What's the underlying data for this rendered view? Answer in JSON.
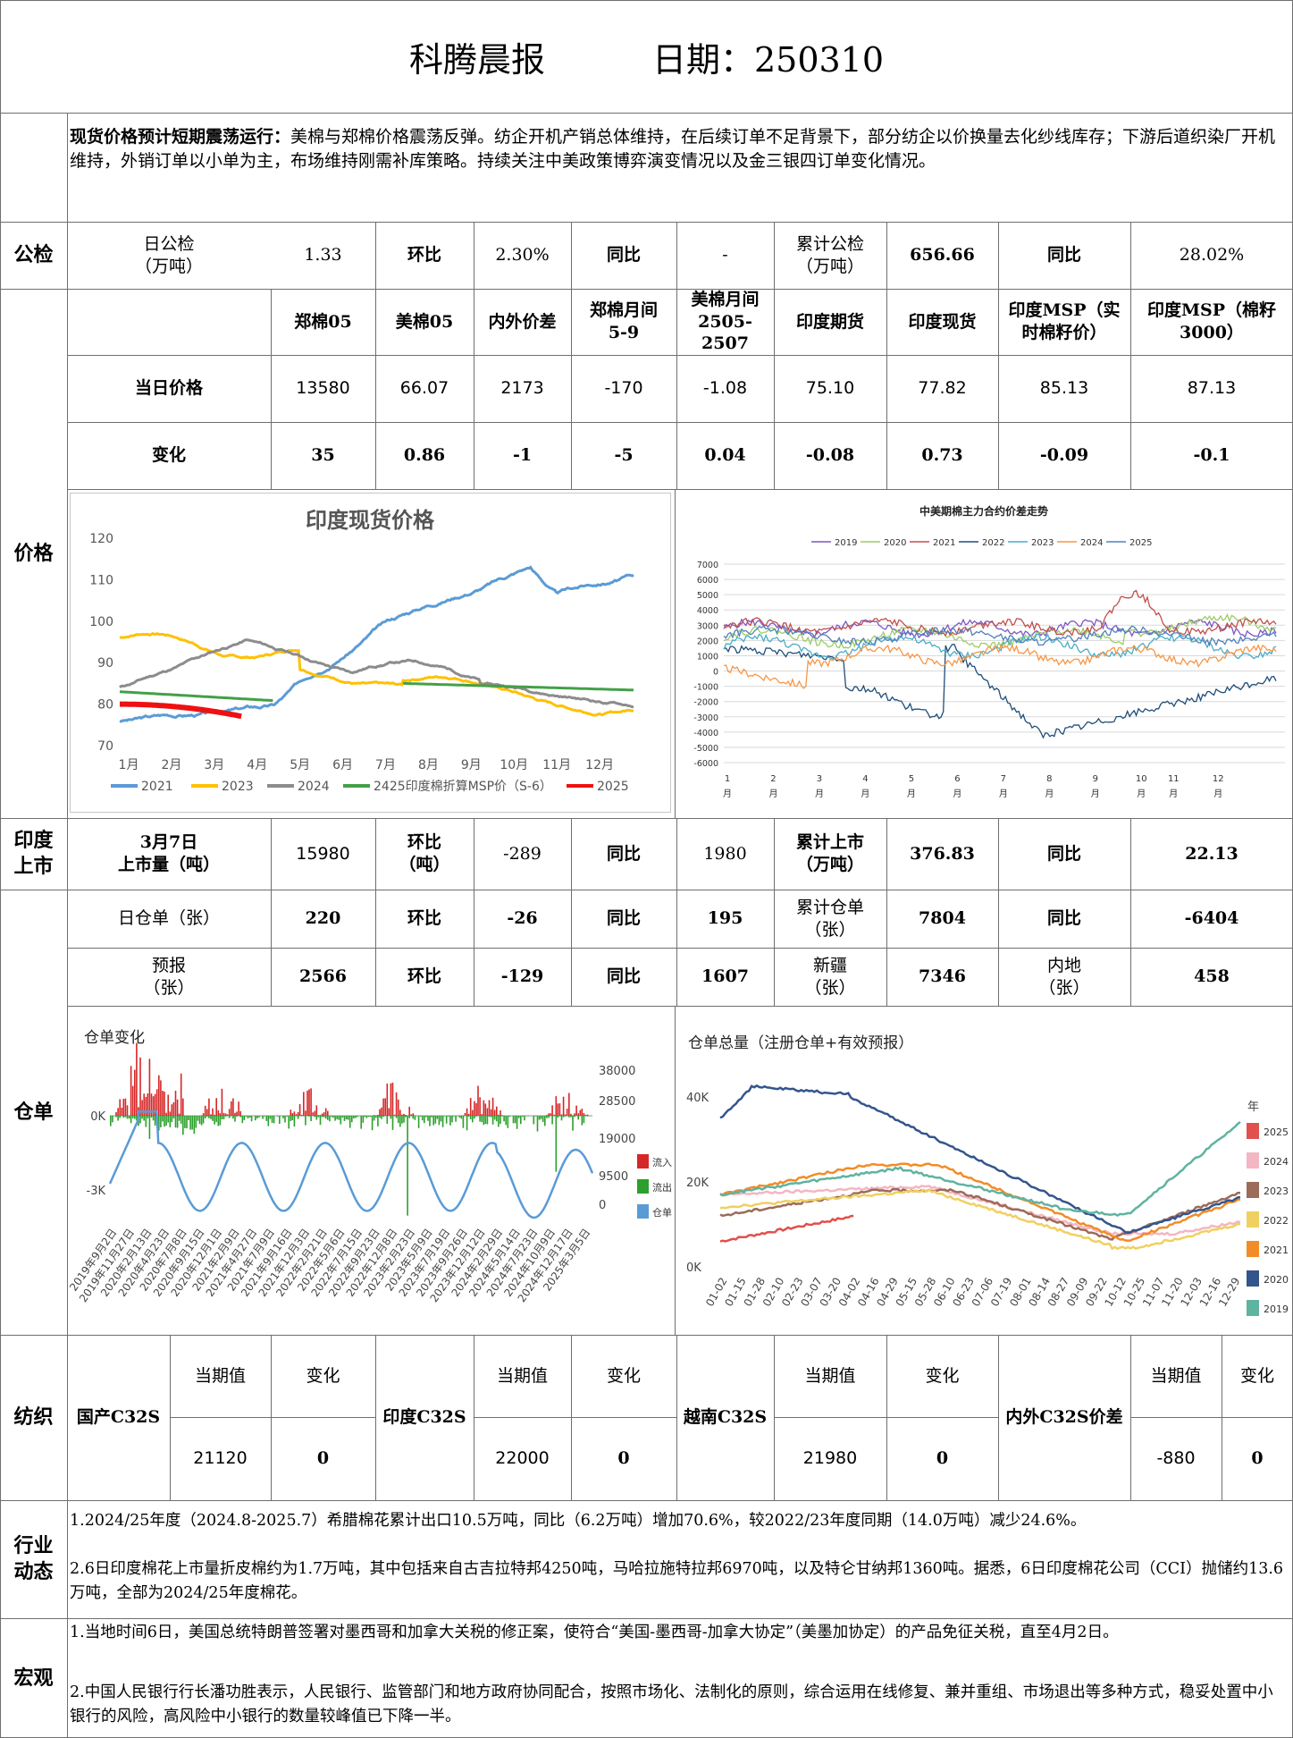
{
  "header": {
    "title": "科腾晨报",
    "date": "日期：250310"
  },
  "summary": {
    "lead": "现货价格预计短期震荡运行：",
    "text": "美棉与郑棉价格震荡反弹。纺企开机产销总体维持，在后续订单不足背景下，部分纺企以价换量去化纱线库存；下游后道织染厂开机维持，外销订单以小单为主，布场维持刚需补库策略。持续关注中美政策博弈演变情况以及金三银四订单变化情况。"
  },
  "gongjian": {
    "section": "公检",
    "daily_label": "日公检\n（万吨）",
    "daily_value": "1.33",
    "hb_label": "环比",
    "hb_value": "2.30%",
    "tb_label": "同比",
    "tb_value": "-",
    "cum_label": "累计公检\n（万吨）",
    "cum_value": "656.66",
    "tb2_label": "同比",
    "tb2_value": "28.02%"
  },
  "price": {
    "section": "价格",
    "headers": [
      "郑棉05",
      "美棉05",
      "内外价差",
      "郑棉月间\n5-9",
      "美棉月间\n2505-2507",
      "印度期货",
      "印度现货",
      "印度MSP（实时棉籽价）",
      "印度MSP（棉籽3000）"
    ],
    "row1_label": "当日价格",
    "row1": [
      "13580",
      "66.07",
      "2173",
      "-170",
      "-1.08",
      "75.10",
      "77.82",
      "85.13",
      "87.13"
    ],
    "row2_label": "变化",
    "row2": [
      "35",
      "0.86",
      "-1",
      "-5",
      "0.04",
      "-0.08",
      "0.73",
      "-0.09",
      "-0.1"
    ]
  },
  "chart_india": {
    "title": "印度现货价格",
    "yticks": [
      "120",
      "110",
      "100",
      "90",
      "80",
      "70"
    ],
    "xticks": [
      "1月",
      "2月",
      "3月",
      "4月",
      "5月",
      "6月",
      "7月",
      "8月",
      "9月",
      "10月",
      "11月",
      "12月"
    ],
    "legend": [
      "2021",
      "2023",
      "2024",
      "2425印度棉折算MSP价（S-6）",
      "2025"
    ],
    "colors": {
      "2021": "#5b9bd5",
      "2023": "#ffc000",
      "2024": "#8c8c8c",
      "msp": "#43a047",
      "2025": "#ee1111"
    }
  },
  "chart_spread": {
    "title": "中美期棉主力合约价差走势",
    "legend": [
      "2019",
      "2020",
      "2021",
      "2022",
      "2023",
      "2024",
      "2025"
    ],
    "colors": [
      "#7e57c2",
      "#9ccc65",
      "#c0504d",
      "#1f4e79",
      "#4bacc6",
      "#f79646",
      "#4f81bd"
    ],
    "yticks": [
      "7000",
      "6000",
      "5000",
      "4000",
      "3000",
      "2000",
      "1000",
      "0",
      "-1000",
      "-2000",
      "-3000",
      "-4000",
      "-5000",
      "-6000"
    ],
    "xticks": [
      "1\n月",
      "2\n月",
      "3\n月",
      "4\n月",
      "5\n月",
      "6\n月",
      "7\n月",
      "8\n月",
      "9\n月",
      "10\n月",
      "11\n月",
      "12\n月"
    ]
  },
  "india_market": {
    "section": "印度\n上市",
    "day_label": "3月7日\n上市量（吨）",
    "day_value": "15980",
    "hb_label": "环比\n（吨）",
    "hb_value": "-289",
    "tb_label": "同比",
    "tb_value": "1980",
    "cum_label": "累计上市\n（万吨）",
    "cum_value": "376.83",
    "tb2_label": "同比",
    "tb2_value": "22.13"
  },
  "warehouse": {
    "section": "仓单",
    "r1": {
      "label": "日仓单（张）",
      "value": "220",
      "hb_label": "环比",
      "hb": "-26",
      "tb_label": "同比",
      "tb": "195",
      "cum_label": "累计仓单\n（张）",
      "cum": "7804",
      "tb2_label": "同比",
      "tb2": "-6404"
    },
    "r2": {
      "label": "预报\n（张）",
      "value": "2566",
      "hb_label": "环比",
      "hb": "-129",
      "tb_label": "同比",
      "tb": "1607",
      "xj_label": "新疆\n（张）",
      "xj": "7346",
      "nd_label": "内地\n（张）",
      "nd": "458"
    }
  },
  "chart_wr_change": {
    "title": "仓单变化",
    "left_ticks": [
      "0K",
      "-3K"
    ],
    "right_ticks": [
      "38000",
      "28500",
      "19000",
      "9500",
      "0"
    ],
    "legend": [
      "流入",
      "流出",
      "仓单"
    ],
    "colors": [
      "#d62728",
      "#2ca02c",
      "#5a9bd5"
    ],
    "xticks": [
      "2019年9月2日",
      "2019年11月27日",
      "2020年2月13日",
      "2020年4月23日",
      "2020年7月8日",
      "2020年9月15日",
      "2020年12月1日",
      "2021年2月9日",
      "2021年4月27日",
      "2021年7月9日",
      "2021年9月16日",
      "2021年12月3日",
      "2022年2月21日",
      "2022年5月6日",
      "2022年7月15日",
      "2022年9月23日",
      "2022年12月8日",
      "2023年2月23日",
      "2023年5月9日",
      "2023年7月19日",
      "2023年9月26日",
      "2023年12月12日",
      "2024年2月29日",
      "2024年5月14日",
      "2024年7月23日",
      "2024年10月9日",
      "2024年12月17日",
      "2025年3月5日"
    ]
  },
  "chart_wr_total": {
    "title": "仓单总量（注册仓单+有效预报）",
    "yticks": [
      "40K",
      "20K",
      "0K"
    ],
    "legend_title": "年",
    "legend": [
      "2025",
      "2024",
      "2023",
      "2022",
      "2021",
      "2020",
      "2019"
    ],
    "colors": [
      "#e0504d",
      "#f4b6c2",
      "#9c6b5a",
      "#f0d060",
      "#f28c28",
      "#34558b",
      "#5fb3a0"
    ],
    "xticks": [
      "01-02",
      "01-15",
      "01-28",
      "02-10",
      "02-23",
      "03-07",
      "03-20",
      "04-02",
      "04-16",
      "04-29",
      "05-15",
      "05-28",
      "06-10",
      "06-23",
      "07-06",
      "07-19",
      "08-01",
      "08-14",
      "08-27",
      "09-09",
      "09-22",
      "10-12",
      "10-25",
      "11-07",
      "11-20",
      "12-03",
      "12-16",
      "12-29"
    ]
  },
  "textile": {
    "section": "纺织",
    "cur_label": "当期值",
    "chg_label": "变化",
    "items": [
      {
        "name": "国产C32S",
        "value": "21120",
        "change": "0"
      },
      {
        "name": "印度C32S",
        "value": "22000",
        "change": "0"
      },
      {
        "name": "越南C32S",
        "value": "21980",
        "change": "0"
      },
      {
        "name": "内外C32S价差",
        "value": "-880",
        "change": "0"
      }
    ]
  },
  "industry": {
    "section": "行业\n动态",
    "p1": "1.2024/25年度（2024.8-2025.7）希腊棉花累计出口10.5万吨，同比（6.2万吨）增加70.6%，较2022/23年度同期（14.0万吨）减少24.6%。",
    "p2": "2.6日印度棉花上市量折皮棉约为1.7万吨，其中包括来自古吉拉特邦4250吨，马哈拉施特拉邦6970吨，以及特仑甘纳邦1360吨。据悉，6日印度棉花公司（CCI）抛储约13.6万吨，全部为2024/25年度棉花。"
  },
  "macro": {
    "section": "宏观",
    "p1": "1.当地时间6日，美国总统特朗普签署对墨西哥和加拿大关税的修正案，使符合“美国-墨西哥-加拿大协定”（美墨加协定）的产品免征关税，直至4月2日。",
    "p2": "2.中国人民银行行长潘功胜表示，人民银行、监管部门和地方政府协同配合，按照市场化、法制化的原则，综合运用在线修复、兼并重组、市场退出等多种方式，稳妥处置中小银行的风险，高风险中小银行的数量较峰值已下降一半。"
  }
}
